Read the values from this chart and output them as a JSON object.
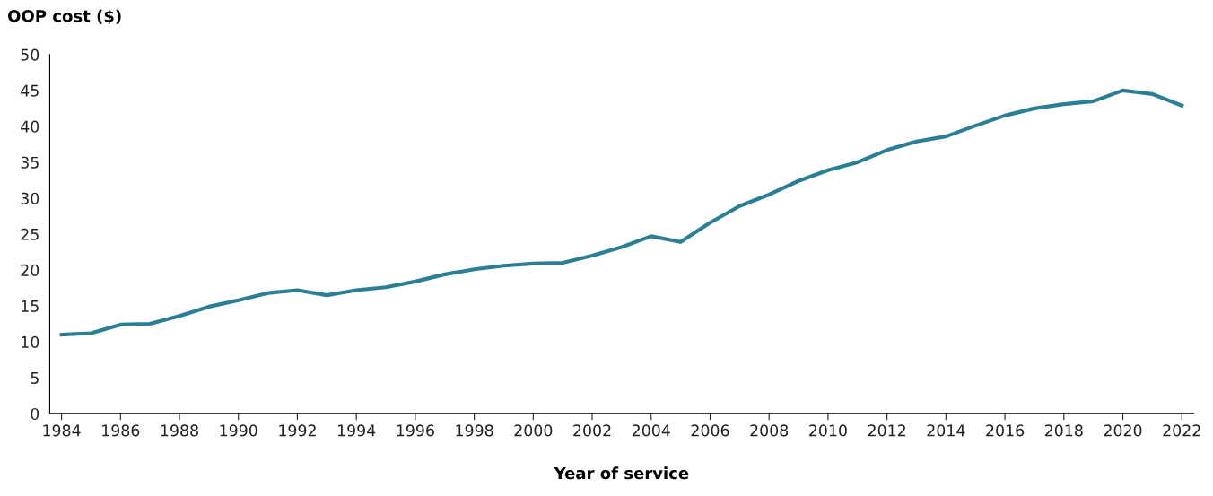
{
  "chart_data": {
    "type": "line",
    "xlabel": "Year of service",
    "ylabel": "OOP cost ($)",
    "x": [
      1984,
      1985,
      1986,
      1987,
      1988,
      1989,
      1990,
      1991,
      1992,
      1993,
      1994,
      1995,
      1996,
      1997,
      1998,
      1999,
      2000,
      2001,
      2002,
      2003,
      2004,
      2005,
      2006,
      2007,
      2008,
      2009,
      2010,
      2011,
      2012,
      2013,
      2014,
      2015,
      2016,
      2017,
      2018,
      2019,
      2020,
      2021,
      2022
    ],
    "series": [
      {
        "color": "#2a7f94",
        "values": [
          11.0,
          11.2,
          12.4,
          12.5,
          13.6,
          14.9,
          15.8,
          16.8,
          17.2,
          16.5,
          17.2,
          17.6,
          18.4,
          19.4,
          20.1,
          20.6,
          20.9,
          21.0,
          22.0,
          23.2,
          24.7,
          23.9,
          26.6,
          28.9,
          30.5,
          32.4,
          33.9,
          35.0,
          36.7,
          37.9,
          38.6,
          40.1,
          41.5,
          42.5,
          43.1,
          43.5,
          45.0,
          44.5,
          42.9
        ]
      }
    ],
    "xlim": [
      1983.6,
      2022.4
    ],
    "xticks": [
      1984,
      1986,
      1988,
      1990,
      1992,
      1994,
      1996,
      1998,
      2000,
      2002,
      2004,
      2006,
      2008,
      2010,
      2012,
      2014,
      2016,
      2018,
      2020,
      2022
    ],
    "ylim": [
      0,
      50
    ],
    "yticks": [
      0,
      5,
      10,
      15,
      20,
      25,
      30,
      35,
      40,
      45,
      50
    ],
    "grid": false,
    "marker": "none",
    "line_style": "solid"
  }
}
